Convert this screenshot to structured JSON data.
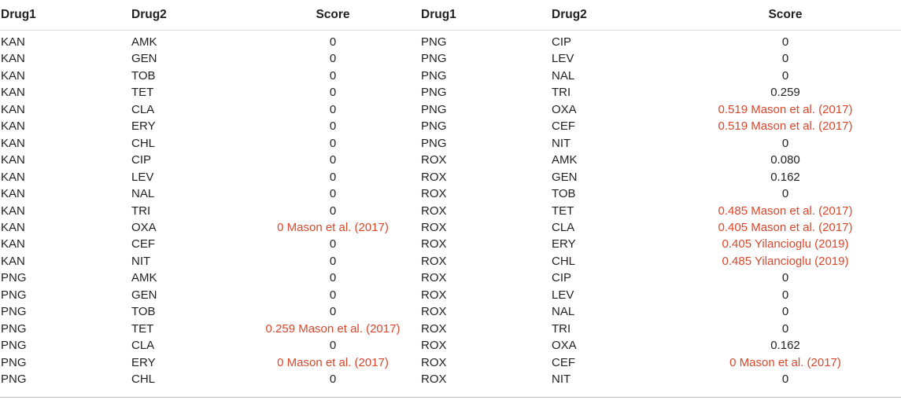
{
  "colors": {
    "text": "#231f20",
    "reference_text": "#d9472b",
    "rule": "#d9d9d9"
  },
  "headers": [
    "Drug1",
    "Drug2",
    "Score",
    "Drug1",
    "Drug2",
    "Score"
  ],
  "rows": [
    {
      "d1": "KAN",
      "d2": "AMK",
      "s": "0",
      "s_ref": false,
      "d1b": "PNG",
      "d2b": "CIP",
      "sb": "0",
      "sb_ref": false
    },
    {
      "d1": "KAN",
      "d2": "GEN",
      "s": "0",
      "s_ref": false,
      "d1b": "PNG",
      "d2b": "LEV",
      "sb": "0",
      "sb_ref": false
    },
    {
      "d1": "KAN",
      "d2": "TOB",
      "s": "0",
      "s_ref": false,
      "d1b": "PNG",
      "d2b": "NAL",
      "sb": "0",
      "sb_ref": false
    },
    {
      "d1": "KAN",
      "d2": "TET",
      "s": "0",
      "s_ref": false,
      "d1b": "PNG",
      "d2b": "TRI",
      "sb": "0.259",
      "sb_ref": false
    },
    {
      "d1": "KAN",
      "d2": "CLA",
      "s": "0",
      "s_ref": false,
      "d1b": "PNG",
      "d2b": "OXA",
      "sb": "0.519 Mason et al. (2017)",
      "sb_ref": true
    },
    {
      "d1": "KAN",
      "d2": "ERY",
      "s": "0",
      "s_ref": false,
      "d1b": "PNG",
      "d2b": "CEF",
      "sb": "0.519 Mason et al. (2017)",
      "sb_ref": true
    },
    {
      "d1": "KAN",
      "d2": "CHL",
      "s": "0",
      "s_ref": false,
      "d1b": "PNG",
      "d2b": "NIT",
      "sb": "0",
      "sb_ref": false
    },
    {
      "d1": "KAN",
      "d2": "CIP",
      "s": "0",
      "s_ref": false,
      "d1b": "ROX",
      "d2b": "AMK",
      "sb": "0.080",
      "sb_ref": false
    },
    {
      "d1": "KAN",
      "d2": "LEV",
      "s": "0",
      "s_ref": false,
      "d1b": "ROX",
      "d2b": "GEN",
      "sb": "0.162",
      "sb_ref": false
    },
    {
      "d1": "KAN",
      "d2": "NAL",
      "s": "0",
      "s_ref": false,
      "d1b": "ROX",
      "d2b": "TOB",
      "sb": "0",
      "sb_ref": false
    },
    {
      "d1": "KAN",
      "d2": "TRI",
      "s": "0",
      "s_ref": false,
      "d1b": "ROX",
      "d2b": "TET",
      "sb": "0.485 Mason et al. (2017)",
      "sb_ref": true
    },
    {
      "d1": "KAN",
      "d2": "OXA",
      "s": "0 Mason et al. (2017)",
      "s_ref": true,
      "d1b": "ROX",
      "d2b": "CLA",
      "sb": "0.405 Mason et al. (2017)",
      "sb_ref": true
    },
    {
      "d1": "KAN",
      "d2": "CEF",
      "s": "0",
      "s_ref": false,
      "d1b": "ROX",
      "d2b": "ERY",
      "sb": "0.405 Yilancioglu (2019)",
      "sb_ref": true
    },
    {
      "d1": "KAN",
      "d2": "NIT",
      "s": "0",
      "s_ref": false,
      "d1b": "ROX",
      "d2b": "CHL",
      "sb": "0.485 Yilancioglu (2019)",
      "sb_ref": true
    },
    {
      "d1": "PNG",
      "d2": "AMK",
      "s": "0",
      "s_ref": false,
      "d1b": "ROX",
      "d2b": "CIP",
      "sb": "0",
      "sb_ref": false
    },
    {
      "d1": "PNG",
      "d2": "GEN",
      "s": "0",
      "s_ref": false,
      "d1b": "ROX",
      "d2b": "LEV",
      "sb": "0",
      "sb_ref": false
    },
    {
      "d1": "PNG",
      "d2": "TOB",
      "s": "0",
      "s_ref": false,
      "d1b": "ROX",
      "d2b": "NAL",
      "sb": "0",
      "sb_ref": false
    },
    {
      "d1": "PNG",
      "d2": "TET",
      "s": "0.259 Mason et al. (2017)",
      "s_ref": true,
      "d1b": "ROX",
      "d2b": "TRI",
      "sb": "0",
      "sb_ref": false
    },
    {
      "d1": "PNG",
      "d2": "CLA",
      "s": "0",
      "s_ref": false,
      "d1b": "ROX",
      "d2b": "OXA",
      "sb": "0.162",
      "sb_ref": false
    },
    {
      "d1": "PNG",
      "d2": "ERY",
      "s": "0 Mason et al. (2017)",
      "s_ref": true,
      "d1b": "ROX",
      "d2b": "CEF",
      "sb": "0 Mason et al. (2017)",
      "sb_ref": true
    },
    {
      "d1": "PNG",
      "d2": "CHL",
      "s": "0",
      "s_ref": false,
      "d1b": "ROX",
      "d2b": "NIT",
      "sb": "0",
      "sb_ref": false
    }
  ]
}
